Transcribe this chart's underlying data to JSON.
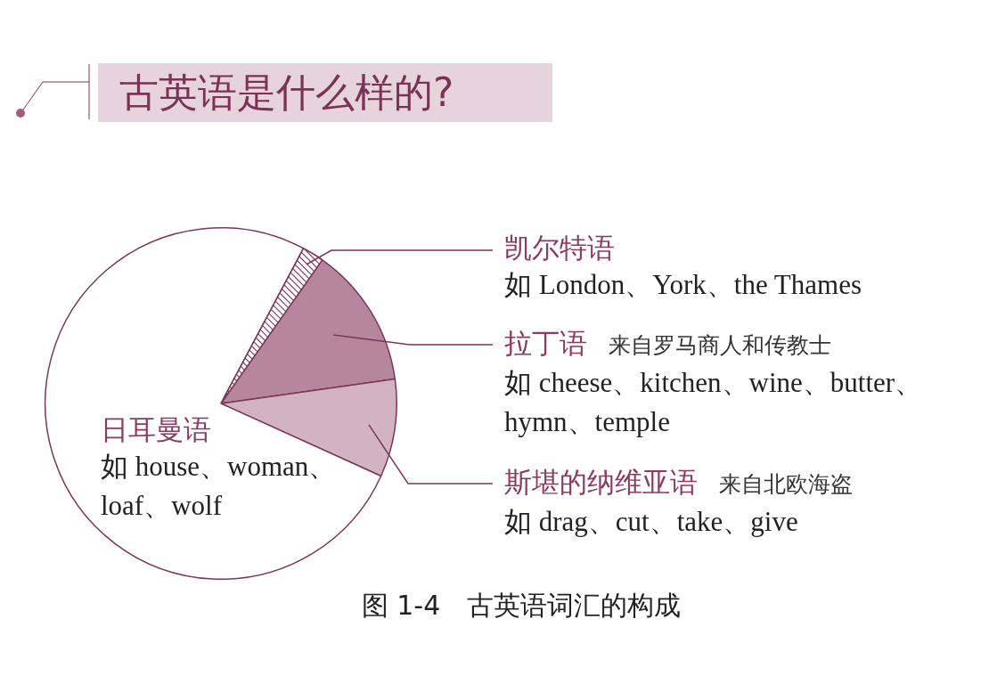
{
  "chart_data": {
    "type": "pie",
    "title": "古英语是什么样的?",
    "categories": [
      "凯尔特语",
      "拉丁语",
      "斯堪的纳维亚语",
      "日耳曼语"
    ],
    "values": [
      2,
      13,
      9,
      76
    ],
    "colors": [
      "#7b3658",
      "#b5869e",
      "#d2b3c2",
      "#ffffff"
    ],
    "legend": false,
    "annotations": [
      "如 London、York、the Thames",
      "来自罗马商人和传教士",
      "如 cheese、kitchen、wine、butter、hymn、temple",
      "来自北欧海盗",
      "如 drag、cut、take、give",
      "如 house、woman、loaf、wolf",
      "图 1-4　古英语词汇的构成"
    ]
  }
}
